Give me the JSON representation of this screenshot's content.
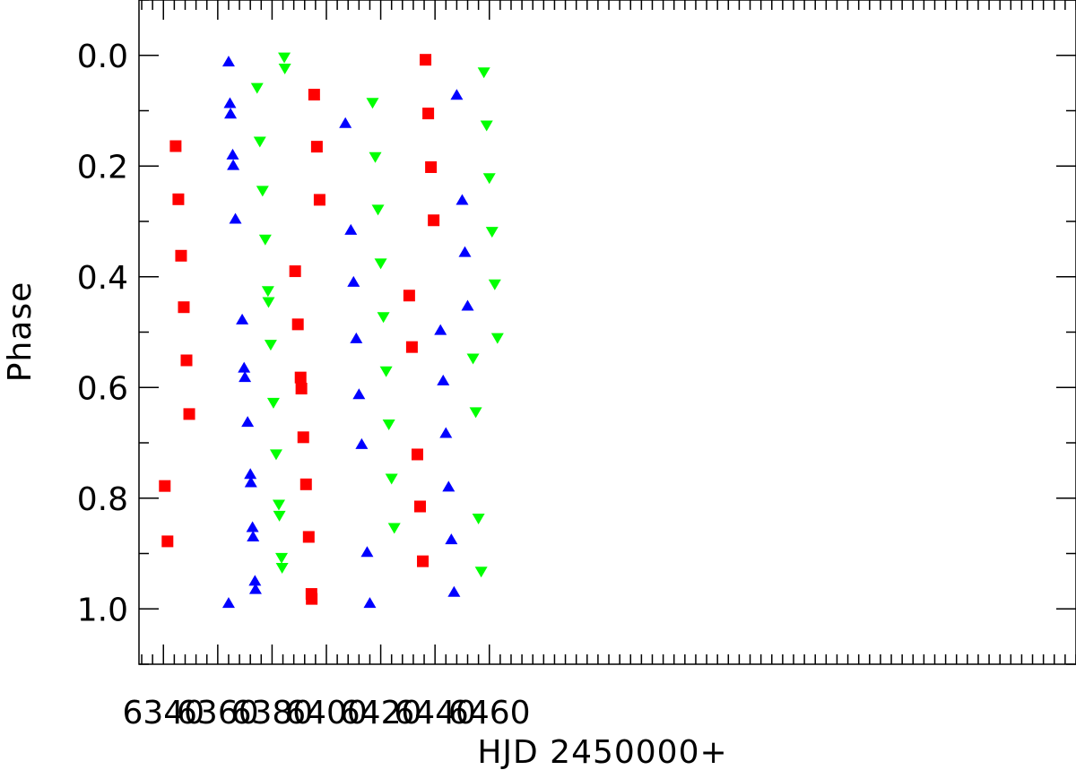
{
  "chart_data": {
    "type": "scatter",
    "title": "",
    "xlabel": "HJD 2450000+",
    "ylabel": "Phase",
    "xlim": [
      6331,
      6676
    ],
    "ylim": [
      1.1,
      -0.1
    ],
    "y_inverted": true,
    "grid": false,
    "x_ticks": [
      {
        "value": 6340,
        "label": "6340"
      },
      {
        "value": 6360,
        "label": "6360"
      },
      {
        "value": 6380,
        "label": "6380"
      },
      {
        "value": 6400,
        "label": "6400"
      },
      {
        "value": 6420,
        "label": "6420"
      },
      {
        "value": 6440,
        "label": "6440"
      },
      {
        "value": 6460,
        "label": "6460"
      }
    ],
    "x_minor_step": 4,
    "y_ticks": [
      {
        "value": 0.0,
        "label": "0.0"
      },
      {
        "value": 0.2,
        "label": "0.2"
      },
      {
        "value": 0.4,
        "label": "0.4"
      },
      {
        "value": 0.6,
        "label": "0.6"
      },
      {
        "value": 0.8,
        "label": "0.8"
      },
      {
        "value": 1.0,
        "label": "1.0"
      }
    ],
    "y_minor_step": 0.1,
    "series": [
      {
        "marker": "square",
        "color": "#ff0000",
        "points": [
          [
            6340.5,
            0.778
          ],
          [
            6341.5,
            0.878
          ],
          [
            6344.5,
            0.164
          ],
          [
            6345.5,
            0.26
          ],
          [
            6346.5,
            0.362
          ],
          [
            6347.5,
            0.455
          ],
          [
            6348.5,
            0.551
          ],
          [
            6349.5,
            0.648
          ],
          [
            6388.5,
            0.39
          ],
          [
            6389.5,
            0.486
          ],
          [
            6390.5,
            0.582
          ],
          [
            6390.8,
            0.602
          ],
          [
            6391.5,
            0.69
          ],
          [
            6392.5,
            0.775
          ],
          [
            6393.5,
            0.87
          ],
          [
            6394.5,
            0.973
          ],
          [
            6394.6,
            0.982
          ],
          [
            6395.5,
            0.071
          ],
          [
            6396.5,
            0.165
          ],
          [
            6397.5,
            0.261
          ],
          [
            6430.5,
            0.434
          ],
          [
            6431.5,
            0.527
          ],
          [
            6433.5,
            0.721
          ],
          [
            6434.5,
            0.815
          ],
          [
            6435.5,
            0.914
          ],
          [
            6436.5,
            0.008
          ],
          [
            6437.5,
            0.105
          ],
          [
            6438.5,
            0.202
          ],
          [
            6439.5,
            0.298
          ]
        ]
      },
      {
        "marker": "triangle-up",
        "color": "#0000ff",
        "points": [
          [
            6364.0,
            0.012
          ],
          [
            6364.5,
            0.087
          ],
          [
            6364.7,
            0.106
          ],
          [
            6365.5,
            0.18
          ],
          [
            6365.7,
            0.199
          ],
          [
            6366.5,
            0.296
          ],
          [
            6364.0,
            0.99
          ],
          [
            6369.0,
            0.478
          ],
          [
            6369.7,
            0.565
          ],
          [
            6370.0,
            0.582
          ],
          [
            6371.0,
            0.663
          ],
          [
            6372.0,
            0.757
          ],
          [
            6372.2,
            0.772
          ],
          [
            6372.8,
            0.853
          ],
          [
            6373.0,
            0.87
          ],
          [
            6373.7,
            0.95
          ],
          [
            6373.9,
            0.965
          ],
          [
            6407.0,
            0.123
          ],
          [
            6409.0,
            0.316
          ],
          [
            6410.0,
            0.41
          ],
          [
            6411.0,
            0.512
          ],
          [
            6412.0,
            0.613
          ],
          [
            6413.0,
            0.703
          ],
          [
            6415.0,
            0.898
          ],
          [
            6416.0,
            0.99
          ],
          [
            6442.0,
            0.497
          ],
          [
            6443.0,
            0.588
          ],
          [
            6444.0,
            0.683
          ],
          [
            6445.0,
            0.78
          ],
          [
            6446.0,
            0.875
          ],
          [
            6447.0,
            0.97
          ],
          [
            6448.0,
            0.072
          ],
          [
            6450.0,
            0.262
          ],
          [
            6451.0,
            0.356
          ],
          [
            6452.0,
            0.453
          ]
        ]
      },
      {
        "marker": "triangle-down",
        "color": "#00ff00",
        "points": [
          [
            6384.5,
            0.003
          ],
          [
            6384.7,
            0.023
          ],
          [
            6374.5,
            0.058
          ],
          [
            6375.5,
            0.155
          ],
          [
            6376.5,
            0.244
          ],
          [
            6377.5,
            0.332
          ],
          [
            6378.5,
            0.425
          ],
          [
            6378.7,
            0.445
          ],
          [
            6379.5,
            0.522
          ],
          [
            6380.5,
            0.627
          ],
          [
            6381.5,
            0.72
          ],
          [
            6382.5,
            0.811
          ],
          [
            6382.7,
            0.831
          ],
          [
            6383.5,
            0.907
          ],
          [
            6383.7,
            0.925
          ],
          [
            6417.0,
            0.085
          ],
          [
            6418.0,
            0.183
          ],
          [
            6419.0,
            0.278
          ],
          [
            6420.0,
            0.375
          ],
          [
            6421.0,
            0.472
          ],
          [
            6422.0,
            0.57
          ],
          [
            6423.0,
            0.666
          ],
          [
            6424.0,
            0.764
          ],
          [
            6425.0,
            0.853
          ],
          [
            6454.0,
            0.547
          ],
          [
            6455.0,
            0.644
          ],
          [
            6456.0,
            0.836
          ],
          [
            6457.0,
            0.932
          ],
          [
            6458.0,
            0.03
          ],
          [
            6459.0,
            0.126
          ],
          [
            6460.0,
            0.221
          ],
          [
            6461.0,
            0.318
          ],
          [
            6462.0,
            0.413
          ],
          [
            6463.0,
            0.51
          ]
        ]
      }
    ]
  }
}
